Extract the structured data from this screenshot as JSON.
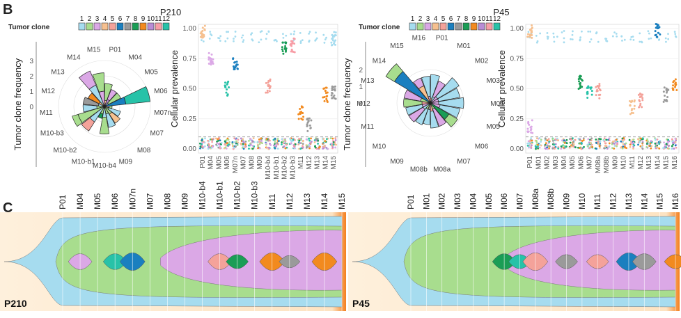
{
  "panel_labels": {
    "b": "B",
    "c": "C"
  },
  "legend_title": "Tumor clone",
  "colors": {
    "1": "#a6dcef",
    "2": "#a8dd8e",
    "3": "#dba8e6",
    "4": "#f6c08f",
    "5": "#f4a29a",
    "6": "#1a7fbf",
    "7": "#9a9a9a",
    "8": "#1a9d55",
    "9": "#f28a1f",
    "10": "#b98cd6",
    "11": "#f79da6",
    "12": "#27c2a8",
    "bg": "#fde3c2",
    "bg_edge": "#f4801f"
  },
  "chart_data": [
    {
      "type": "polar-bar",
      "patient": "P210",
      "title": "P210",
      "legend_clones": [
        "1",
        "2",
        "3",
        "4",
        "5",
        "6",
        "7",
        "8",
        "9",
        "10",
        "11",
        "12"
      ],
      "ylabel": "Tumor clone frequency",
      "radial_ticks": [
        "0",
        "1",
        "2",
        "3"
      ],
      "samples": [
        "P01",
        "M04",
        "M05",
        "M06",
        "M07n",
        "M07",
        "M08",
        "M09",
        "M10-b4",
        "M10-b1",
        "M10-b2",
        "M10-b3",
        "M11",
        "M12",
        "M13",
        "M14",
        "M15"
      ],
      "ring_values": [
        [
          0.4,
          0.5,
          0.3,
          1.4,
          0.3,
          0.3,
          0.6,
          0.5,
          0.7,
          0.5,
          1.2,
          1.8,
          0.5,
          0.4,
          0.4,
          1.5,
          1.0
        ],
        [
          1.1,
          0.7,
          0.9,
          1.6,
          0.2,
          0.8,
          0.7,
          0.9,
          1.1,
          0.3,
          0.7,
          0.4,
          0.9,
          1.0,
          0.8,
          1.0,
          1.2
        ]
      ],
      "ring_clones": [
        [
          "4",
          "10",
          "1",
          "6",
          "3",
          "2",
          "2",
          "2",
          "1",
          "2",
          "1",
          "2",
          "2",
          "1",
          "4",
          "1",
          "3"
        ],
        [
          "2",
          "3",
          "2",
          "12",
          "2",
          "1",
          "4",
          "1",
          "2",
          "8",
          "5",
          "2",
          "1",
          "7",
          "9",
          "3",
          "2"
        ]
      ]
    },
    {
      "type": "strip",
      "patient": "P210",
      "ylabel": "Cellular prevalence",
      "y_ticks": [
        "0.00",
        "0.25",
        "0.50",
        "0.75",
        "1.00"
      ],
      "ylim": [
        0,
        1
      ],
      "threshold": 0.1,
      "categories": [
        "P01",
        "M04",
        "M05",
        "M06",
        "M07n",
        "M07",
        "M08",
        "M09",
        "M10-b4",
        "M10-b1",
        "M10-b2",
        "M10-b3",
        "M11",
        "M12",
        "M13",
        "M14",
        "M15"
      ],
      "clusters": [
        {
          "clone": "4",
          "x": "P01",
          "y": 0.97
        },
        {
          "clone": "3",
          "x": "M04",
          "y": 0.75
        },
        {
          "clone": "12",
          "x": "M06",
          "y": 0.5
        },
        {
          "clone": "6",
          "x": "M07n",
          "y": 0.72
        },
        {
          "clone": "5",
          "x": "M10-b4",
          "y": 0.52
        },
        {
          "clone": "8",
          "x": "M10-b2",
          "y": 0.85
        },
        {
          "clone": "11",
          "x": "M10-b3",
          "y": 0.86
        },
        {
          "clone": "9",
          "x": "M11",
          "y": 0.3
        },
        {
          "clone": "7",
          "x": "M12",
          "y": 0.2
        },
        {
          "clone": "9",
          "x": "M14",
          "y": 0.45
        },
        {
          "clone": "7",
          "x": "M15",
          "y": 0.47
        },
        {
          "clone": "1",
          "x": "M15",
          "y": 0.92
        }
      ]
    },
    {
      "type": "polar-bar",
      "patient": "P45",
      "title": "P45",
      "legend_clones": [
        "1",
        "2",
        "3",
        "4",
        "5",
        "6",
        "7",
        "8",
        "9",
        "10",
        "11",
        "12"
      ],
      "ylabel": "Tumor clone frequency",
      "radial_ticks": [
        "0",
        "1",
        "2"
      ],
      "samples": [
        "P01",
        "M01",
        "M02",
        "M03",
        "M04",
        "M05",
        "M06",
        "M07",
        "M08a",
        "M08b",
        "M09",
        "M10",
        "M11",
        "M12",
        "M13",
        "M14",
        "M15",
        "M16"
      ],
      "ring_values": [
        [
          0.3,
          0.4,
          0.5,
          0.5,
          0.5,
          0.6,
          1.3,
          0.4,
          0.5,
          0.4,
          0.4,
          0.5,
          0.5,
          0.5,
          0.6,
          2.5,
          1.1,
          0.4
        ],
        [
          1.4,
          1.0,
          1.5,
          1.3,
          1.5,
          1.2,
          0.6,
          1.1,
          1.0,
          0.9,
          1.0,
          1.0,
          1.0,
          1.1,
          1.0,
          0.6,
          0.5,
          1.2
        ]
      ],
      "ring_clones": [
        [
          "4",
          "1",
          "3",
          "3",
          "3",
          "3",
          "8",
          "2",
          "5",
          "7",
          "2",
          "1",
          "3",
          "5",
          "2",
          "6",
          "4",
          "3"
        ],
        [
          "1",
          "3",
          "1",
          "1",
          "1",
          "1",
          "2",
          "3",
          "1",
          "1",
          "1",
          "3",
          "1",
          "2",
          "3",
          "2",
          "3",
          "1"
        ]
      ]
    },
    {
      "type": "strip",
      "patient": "P45",
      "ylabel": "Cellular prevalence",
      "y_ticks": [
        "0.00",
        "0.25",
        "0.50",
        "0.75",
        "1.00"
      ],
      "ylim": [
        0,
        1
      ],
      "threshold": 0.1,
      "categories": [
        "P01",
        "M01",
        "M02",
        "M03",
        "M04",
        "M05",
        "M06",
        "M07",
        "M08a",
        "M08b",
        "M09",
        "M10",
        "M11",
        "M12",
        "M13",
        "M14",
        "M15",
        "M16"
      ],
      "clusters": [
        {
          "clone": "4",
          "x": "P01",
          "y": 0.97
        },
        {
          "clone": "3",
          "x": "P01",
          "y": 0.18
        },
        {
          "clone": "8",
          "x": "M06",
          "y": 0.55
        },
        {
          "clone": "12",
          "x": "M07",
          "y": 0.48
        },
        {
          "clone": "5",
          "x": "M08a",
          "y": 0.48
        },
        {
          "clone": "4",
          "x": "M11",
          "y": 0.35
        },
        {
          "clone": "5",
          "x": "M12",
          "y": 0.4
        },
        {
          "clone": "6",
          "x": "M14",
          "y": 0.98
        },
        {
          "clone": "7",
          "x": "M15",
          "y": 0.45
        },
        {
          "clone": "9",
          "x": "M16",
          "y": 0.53
        }
      ]
    },
    {
      "type": "fishplot",
      "patient": "P210",
      "label": "P210",
      "samples": [
        "P01",
        "M04",
        "M05",
        "M06",
        "M07n",
        "M07",
        "M08",
        "M09",
        "M10-b4",
        "M10-b1",
        "M10-b2",
        "M10-b3",
        "M11",
        "M12",
        "M13",
        "M14",
        "M15"
      ]
    },
    {
      "type": "fishplot",
      "patient": "P45",
      "label": "P45",
      "samples": [
        "P01",
        "M01",
        "M02",
        "M03",
        "M04",
        "M05",
        "M06",
        "M07",
        "M08a",
        "M08b",
        "M09",
        "M10",
        "M11",
        "M12",
        "M13",
        "M14",
        "M15",
        "M16"
      ]
    }
  ]
}
